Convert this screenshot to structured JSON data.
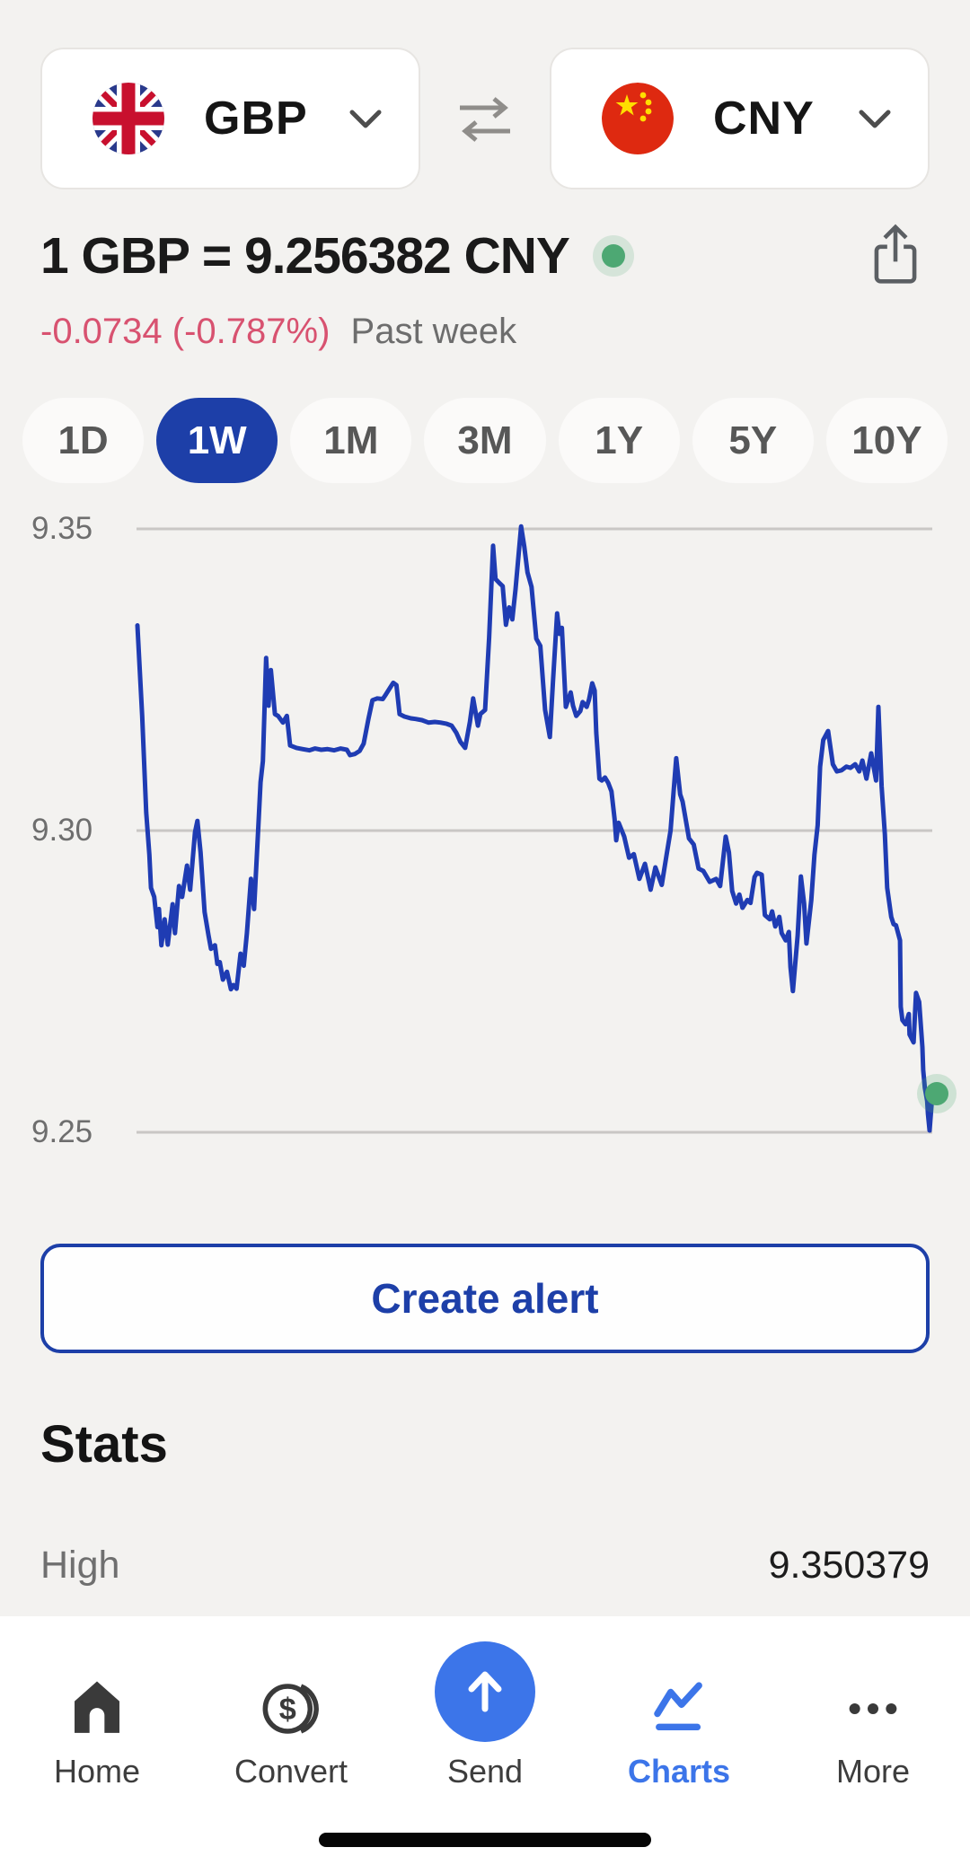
{
  "app": {
    "bg_color": "#f3f2f0",
    "accent_blue": "#1d3fa8",
    "chart_blue": "#1f3cb3",
    "nav_blue": "#3c75e9",
    "negative_red": "#d85270",
    "green_dot": "#4da873",
    "gridline_color": "#c9c7c5"
  },
  "currency_selector": {
    "from": {
      "code": "GBP",
      "flag": "uk-flag"
    },
    "to": {
      "code": "CNY",
      "flag": "china-flag"
    },
    "swap_icon": "swap-arrows-icon"
  },
  "header": {
    "rate_line": "1 GBP = 9.256382 CNY",
    "change": "-0.0734 (-0.787%)",
    "period": "Past week"
  },
  "range_tabs": {
    "selected": "1W",
    "items": [
      "1D",
      "1W",
      "1M",
      "3M",
      "1Y",
      "5Y",
      "10Y"
    ]
  },
  "chart_data": {
    "type": "line",
    "title": "GBP to CNY exchange rate, past week",
    "xlabel": "",
    "ylabel": "",
    "x_unit": "fraction_of_week",
    "yticks": [
      "9.35",
      "9.30",
      "9.25"
    ],
    "ylim": [
      9.25,
      9.35
    ],
    "grid": true,
    "legend": false,
    "high": 9.350379,
    "last": 9.256382,
    "series": [
      {
        "name": "GBP/CNY",
        "points": [
          [
            0.0,
            9.334
          ],
          [
            0.006,
            9.319
          ],
          [
            0.011,
            9.303
          ],
          [
            0.015,
            9.296
          ],
          [
            0.017,
            9.2905
          ],
          [
            0.021,
            9.289
          ],
          [
            0.025,
            9.284
          ],
          [
            0.027,
            9.287
          ],
          [
            0.03,
            9.281
          ],
          [
            0.034,
            9.2853
          ],
          [
            0.038,
            9.2811
          ],
          [
            0.044,
            9.2878
          ],
          [
            0.047,
            9.283
          ],
          [
            0.052,
            9.2908
          ],
          [
            0.056,
            9.289
          ],
          [
            0.062,
            9.2942
          ],
          [
            0.066,
            9.2902
          ],
          [
            0.072,
            9.2997
          ],
          [
            0.075,
            9.3016
          ],
          [
            0.079,
            9.2964
          ],
          [
            0.084,
            9.2865
          ],
          [
            0.089,
            9.2826
          ],
          [
            0.092,
            9.2804
          ],
          [
            0.097,
            9.281
          ],
          [
            0.1,
            9.2779
          ],
          [
            0.103,
            9.2782
          ],
          [
            0.107,
            9.2753
          ],
          [
            0.112,
            9.2766
          ],
          [
            0.117,
            9.2737
          ],
          [
            0.12,
            9.2744
          ],
          [
            0.124,
            9.2738
          ],
          [
            0.129,
            9.2796
          ],
          [
            0.133,
            9.2776
          ],
          [
            0.137,
            9.283
          ],
          [
            0.142,
            9.292
          ],
          [
            0.146,
            9.287
          ],
          [
            0.151,
            9.3
          ],
          [
            0.154,
            9.308
          ],
          [
            0.157,
            9.3115
          ],
          [
            0.161,
            9.3286
          ],
          [
            0.164,
            9.3207
          ],
          [
            0.167,
            9.3266
          ],
          [
            0.172,
            9.3193
          ],
          [
            0.176,
            9.319
          ],
          [
            0.182,
            9.3179
          ],
          [
            0.187,
            9.319
          ],
          [
            0.191,
            9.3141
          ],
          [
            0.199,
            9.3137
          ],
          [
            0.207,
            9.3135
          ],
          [
            0.215,
            9.3133
          ],
          [
            0.222,
            9.3136
          ],
          [
            0.23,
            9.3134
          ],
          [
            0.238,
            9.3135
          ],
          [
            0.246,
            9.3133
          ],
          [
            0.254,
            9.3136
          ],
          [
            0.262,
            9.3134
          ],
          [
            0.266,
            9.3125
          ],
          [
            0.272,
            9.3127
          ],
          [
            0.278,
            9.3132
          ],
          [
            0.283,
            9.3144
          ],
          [
            0.289,
            9.3185
          ],
          [
            0.294,
            9.3216
          ],
          [
            0.3,
            9.3219
          ],
          [
            0.307,
            9.3218
          ],
          [
            0.311,
            9.3226
          ],
          [
            0.32,
            9.3245
          ],
          [
            0.324,
            9.3241
          ],
          [
            0.328,
            9.3193
          ],
          [
            0.334,
            9.3189
          ],
          [
            0.342,
            9.3186
          ],
          [
            0.348,
            9.3185
          ],
          [
            0.356,
            9.3183
          ],
          [
            0.364,
            9.3179
          ],
          [
            0.372,
            9.318
          ],
          [
            0.379,
            9.3179
          ],
          [
            0.387,
            9.3177
          ],
          [
            0.393,
            9.3174
          ],
          [
            0.399,
            9.3162
          ],
          [
            0.404,
            9.3147
          ],
          [
            0.41,
            9.3137
          ],
          [
            0.416,
            9.318
          ],
          [
            0.42,
            9.3219
          ],
          [
            0.426,
            9.3174
          ],
          [
            0.429,
            9.3193
          ],
          [
            0.435,
            9.32
          ],
          [
            0.44,
            9.332
          ],
          [
            0.445,
            9.3472
          ],
          [
            0.448,
            9.3417
          ],
          [
            0.453,
            9.341
          ],
          [
            0.457,
            9.3405
          ],
          [
            0.461,
            9.3341
          ],
          [
            0.465,
            9.337
          ],
          [
            0.469,
            9.335
          ],
          [
            0.473,
            9.34
          ],
          [
            0.48,
            9.3504
          ],
          [
            0.484,
            9.347
          ],
          [
            0.488,
            9.3428
          ],
          [
            0.493,
            9.3404
          ],
          [
            0.499,
            9.3318
          ],
          [
            0.504,
            9.3306
          ],
          [
            0.51,
            9.32
          ],
          [
            0.516,
            9.3155
          ],
          [
            0.52,
            9.325
          ],
          [
            0.525,
            9.336
          ],
          [
            0.528,
            9.3326
          ],
          [
            0.531,
            9.3336
          ],
          [
            0.536,
            9.3205
          ],
          [
            0.542,
            9.3229
          ],
          [
            0.545,
            9.3207
          ],
          [
            0.549,
            9.319
          ],
          [
            0.554,
            9.3198
          ],
          [
            0.557,
            9.3213
          ],
          [
            0.562,
            9.3205
          ],
          [
            0.565,
            9.3217
          ],
          [
            0.569,
            9.3244
          ],
          [
            0.572,
            9.3232
          ],
          [
            0.574,
            9.3162
          ],
          [
            0.578,
            9.3086
          ],
          [
            0.581,
            9.3083
          ],
          [
            0.585,
            9.3088
          ],
          [
            0.589,
            9.3079
          ],
          [
            0.593,
            9.3065
          ],
          [
            0.597,
            9.3019
          ],
          [
            0.599,
            9.2984
          ],
          [
            0.602,
            9.3013
          ],
          [
            0.609,
            9.299
          ],
          [
            0.615,
            9.2955
          ],
          [
            0.621,
            9.2961
          ],
          [
            0.628,
            9.292
          ],
          [
            0.635,
            9.2945
          ],
          [
            0.642,
            9.2902
          ],
          [
            0.648,
            9.2939
          ],
          [
            0.656,
            9.291
          ],
          [
            0.662,
            9.296
          ],
          [
            0.667,
            9.3
          ],
          [
            0.674,
            9.312
          ],
          [
            0.679,
            9.306
          ],
          [
            0.682,
            9.3048
          ],
          [
            0.69,
            9.2987
          ],
          [
            0.696,
            9.2977
          ],
          [
            0.702,
            9.2937
          ],
          [
            0.708,
            9.2933
          ],
          [
            0.716,
            9.2915
          ],
          [
            0.724,
            9.292
          ],
          [
            0.729,
            9.2908
          ],
          [
            0.736,
            9.299
          ],
          [
            0.74,
            9.2964
          ],
          [
            0.744,
            9.29
          ],
          [
            0.749,
            9.2879
          ],
          [
            0.753,
            9.2894
          ],
          [
            0.757,
            9.2872
          ],
          [
            0.763,
            9.2885
          ],
          [
            0.767,
            9.288
          ],
          [
            0.772,
            9.2923
          ],
          [
            0.775,
            9.293
          ],
          [
            0.781,
            9.2927
          ],
          [
            0.785,
            9.286
          ],
          [
            0.791,
            9.2853
          ],
          [
            0.794,
            9.2866
          ],
          [
            0.798,
            9.2841
          ],
          [
            0.803,
            9.2857
          ],
          [
            0.806,
            9.283
          ],
          [
            0.811,
            9.2818
          ],
          [
            0.815,
            9.2832
          ],
          [
            0.817,
            9.2774
          ],
          [
            0.82,
            9.2734
          ],
          [
            0.826,
            9.2826
          ],
          [
            0.83,
            9.2924
          ],
          [
            0.834,
            9.2879
          ],
          [
            0.837,
            9.2813
          ],
          [
            0.843,
            9.2885
          ],
          [
            0.847,
            9.296
          ],
          [
            0.851,
            9.3009
          ],
          [
            0.854,
            9.3106
          ],
          [
            0.858,
            9.315
          ],
          [
            0.864,
            9.3165
          ],
          [
            0.87,
            9.311
          ],
          [
            0.875,
            9.3098
          ],
          [
            0.881,
            9.31
          ],
          [
            0.887,
            9.3106
          ],
          [
            0.892,
            9.3104
          ],
          [
            0.898,
            9.311
          ],
          [
            0.903,
            9.3098
          ],
          [
            0.907,
            9.3116
          ],
          [
            0.912,
            9.3086
          ],
          [
            0.918,
            9.3128
          ],
          [
            0.924,
            9.3083
          ],
          [
            0.927,
            9.3205
          ],
          [
            0.931,
            9.3073
          ],
          [
            0.935,
            9.2994
          ],
          [
            0.938,
            9.2905
          ],
          [
            0.943,
            9.2857
          ],
          [
            0.946,
            9.2845
          ],
          [
            0.949,
            9.2843
          ],
          [
            0.954,
            9.2818
          ],
          [
            0.955,
            9.2708
          ],
          [
            0.957,
            9.2686
          ],
          [
            0.961,
            9.2679
          ],
          [
            0.965,
            9.2696
          ],
          [
            0.966,
            9.2662
          ],
          [
            0.971,
            9.2649
          ],
          [
            0.974,
            9.2731
          ],
          [
            0.978,
            9.2716
          ],
          [
            0.982,
            9.2641
          ],
          [
            0.983,
            9.2603
          ],
          [
            0.985,
            9.2574
          ],
          [
            0.988,
            9.2552
          ],
          [
            0.989,
            9.253
          ],
          [
            0.991,
            9.2503
          ],
          [
            0.994,
            9.2555
          ],
          [
            1.0,
            9.2564
          ]
        ]
      }
    ]
  },
  "create_alert_button": {
    "label": "Create alert"
  },
  "stats": {
    "title": "Stats",
    "rows": [
      {
        "label": "High",
        "value": "9.350379"
      }
    ]
  },
  "bottom_nav": {
    "active": "Charts",
    "items": [
      {
        "label": "Home",
        "icon": "home-icon"
      },
      {
        "label": "Convert",
        "icon": "coin-dollar-icon"
      },
      {
        "label": "Send",
        "icon": "send-up-arrow-icon"
      },
      {
        "label": "Charts",
        "icon": "line-chart-icon"
      },
      {
        "label": "More",
        "icon": "more-dots-icon"
      }
    ]
  }
}
